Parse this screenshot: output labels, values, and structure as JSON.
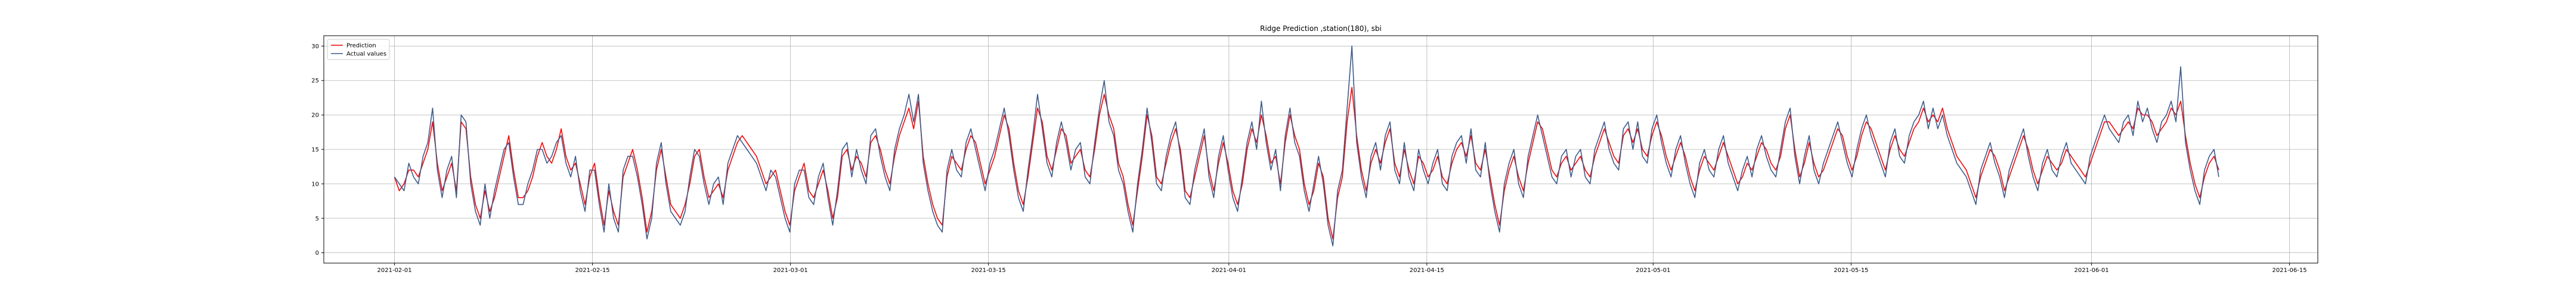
{
  "chart_data": {
    "type": "line",
    "title": "Ridge Prediction ,station(180), sbi",
    "xlabel": "",
    "ylabel": "",
    "x_start": "2021-02-01",
    "x_end": "2021-06-10",
    "xlim": [
      "2021-01-27",
      "2021-06-17"
    ],
    "ylim": [
      -1.5,
      31.5
    ],
    "x_tick_labels": [
      "2021-02-01",
      "2021-02-15",
      "2021-03-01",
      "2021-03-15",
      "2021-04-01",
      "2021-04-15",
      "2021-05-01",
      "2021-05-15",
      "2021-06-01",
      "2021-06-15"
    ],
    "y_ticks": [
      0,
      5,
      10,
      15,
      20,
      25,
      30
    ],
    "grid": true,
    "legend_position": "upper-left",
    "series": [
      {
        "name": "Prediction",
        "color": "#ff0000",
        "values": [
          11,
          9,
          10,
          12,
          12,
          11,
          13,
          15,
          19,
          13,
          9,
          11,
          13,
          9,
          19,
          18,
          11,
          7,
          5,
          9,
          6,
          8,
          11,
          14,
          17,
          12,
          8,
          8,
          9,
          11,
          14,
          16,
          14,
          13,
          15,
          18,
          14,
          12,
          13,
          10,
          7,
          11,
          13,
          8,
          4,
          9,
          6,
          4,
          11,
          13,
          15,
          12,
          8,
          3,
          6,
          12,
          15,
          11,
          7,
          6,
          5,
          7,
          10,
          14,
          15,
          11,
          8,
          9,
          10,
          8,
          12,
          14,
          16,
          17,
          16,
          15,
          14,
          12,
          10,
          11,
          12,
          9,
          6,
          4,
          9,
          11,
          13,
          9,
          8,
          10,
          12,
          9,
          5,
          8,
          14,
          15,
          12,
          14,
          13,
          11,
          16,
          17,
          15,
          12,
          10,
          14,
          17,
          19,
          21,
          18,
          22,
          14,
          10,
          7,
          5,
          4,
          11,
          14,
          13,
          12,
          15,
          17,
          16,
          13,
          10,
          12,
          14,
          17,
          20,
          18,
          13,
          9,
          7,
          11,
          16,
          21,
          19,
          14,
          12,
          15,
          18,
          17,
          13,
          14,
          15,
          12,
          11,
          15,
          20,
          23,
          20,
          18,
          13,
          11,
          7,
          4,
          9,
          14,
          20,
          17,
          11,
          10,
          13,
          16,
          18,
          15,
          9,
          8,
          11,
          14,
          17,
          12,
          9,
          13,
          16,
          13,
          9,
          7,
          10,
          15,
          18,
          16,
          20,
          17,
          13,
          14,
          10,
          16,
          20,
          17,
          15,
          10,
          7,
          9,
          13,
          11,
          5,
          2,
          8,
          11,
          19,
          24,
          17,
          12,
          9,
          13,
          15,
          13,
          16,
          18,
          13,
          11,
          15,
          12,
          10,
          14,
          13,
          11,
          12,
          14,
          11,
          10,
          13,
          15,
          16,
          14,
          17,
          13,
          12,
          15,
          11,
          7,
          4,
          9,
          12,
          14,
          11,
          9,
          13,
          16,
          19,
          18,
          15,
          12,
          11,
          13,
          14,
          12,
          13,
          14,
          12,
          11,
          14,
          16,
          18,
          16,
          14,
          13,
          17,
          18,
          16,
          18,
          15,
          14,
          17,
          19,
          17,
          14,
          12,
          14,
          16,
          14,
          11,
          9,
          12,
          14,
          13,
          12,
          14,
          16,
          14,
          12,
          10,
          11,
          13,
          12,
          14,
          16,
          15,
          13,
          12,
          14,
          18,
          20,
          15,
          11,
          13,
          16,
          13,
          11,
          12,
          14,
          16,
          18,
          17,
          14,
          12,
          14,
          17,
          19,
          18,
          16,
          14,
          12,
          15,
          17,
          15,
          14,
          16,
          18,
          19,
          21,
          19,
          20,
          19,
          21,
          18,
          16,
          14,
          13,
          12,
          10,
          8,
          11,
          13,
          15,
          14,
          12,
          9,
          11,
          13,
          15,
          17,
          15,
          12,
          10,
          12,
          14,
          13,
          12,
          13,
          15,
          14,
          13,
          12,
          11,
          13,
          15,
          17,
          19,
          19,
          18,
          17,
          18,
          19,
          18,
          21,
          20,
          20,
          19,
          17,
          18,
          19,
          21,
          20,
          22,
          17,
          13,
          10,
          8,
          11,
          13,
          14,
          12
        ]
      },
      {
        "name": "Actual values",
        "color": "#3b5b8c",
        "values": [
          11,
          10,
          9,
          13,
          11,
          10,
          14,
          16,
          21,
          12,
          8,
          12,
          14,
          8,
          20,
          19,
          10,
          6,
          4,
          10,
          5,
          9,
          12,
          15,
          16,
          11,
          7,
          7,
          10,
          12,
          15,
          15,
          13,
          14,
          16,
          17,
          13,
          11,
          14,
          9,
          6,
          12,
          12,
          7,
          3,
          10,
          5,
          3,
          12,
          14,
          14,
          11,
          7,
          2,
          5,
          13,
          16,
          10,
          6,
          5,
          4,
          6,
          11,
          15,
          14,
          10,
          7,
          10,
          11,
          7,
          13,
          15,
          17,
          16,
          15,
          14,
          13,
          11,
          9,
          12,
          11,
          8,
          5,
          3,
          10,
          12,
          12,
          8,
          7,
          11,
          13,
          8,
          4,
          9,
          15,
          16,
          11,
          15,
          12,
          10,
          17,
          18,
          14,
          11,
          9,
          15,
          18,
          20,
          23,
          19,
          23,
          13,
          9,
          6,
          4,
          3,
          12,
          15,
          12,
          11,
          16,
          18,
          15,
          12,
          9,
          13,
          15,
          18,
          21,
          17,
          12,
          8,
          6,
          12,
          17,
          23,
          18,
          13,
          11,
          16,
          19,
          16,
          12,
          15,
          16,
          11,
          10,
          16,
          21,
          25,
          19,
          17,
          12,
          10,
          6,
          3,
          10,
          15,
          21,
          16,
          10,
          9,
          14,
          17,
          19,
          14,
          8,
          7,
          12,
          15,
          18,
          11,
          8,
          14,
          17,
          12,
          8,
          6,
          11,
          16,
          19,
          15,
          22,
          16,
          12,
          15,
          9,
          17,
          21,
          16,
          14,
          9,
          6,
          10,
          14,
          10,
          4,
          1,
          9,
          12,
          21,
          30,
          16,
          11,
          8,
          14,
          16,
          12,
          17,
          19,
          12,
          10,
          16,
          11,
          9,
          15,
          12,
          10,
          13,
          15,
          10,
          9,
          14,
          16,
          17,
          13,
          18,
          12,
          11,
          16,
          10,
          6,
          3,
          10,
          13,
          15,
          10,
          8,
          14,
          17,
          20,
          17,
          14,
          11,
          10,
          14,
          15,
          11,
          14,
          15,
          11,
          10,
          15,
          17,
          19,
          15,
          13,
          12,
          18,
          19,
          15,
          19,
          14,
          13,
          18,
          20,
          16,
          13,
          11,
          15,
          17,
          13,
          10,
          8,
          13,
          15,
          12,
          11,
          15,
          17,
          13,
          11,
          9,
          12,
          14,
          11,
          15,
          17,
          14,
          12,
          11,
          15,
          19,
          21,
          14,
          10,
          14,
          17,
          12,
          10,
          13,
          15,
          17,
          19,
          16,
          13,
          11,
          15,
          18,
          20,
          17,
          15,
          13,
          11,
          16,
          18,
          14,
          13,
          17,
          19,
          20,
          22,
          18,
          21,
          18,
          20,
          17,
          15,
          13,
          12,
          11,
          9,
          7,
          12,
          14,
          16,
          13,
          11,
          8,
          12,
          14,
          16,
          18,
          14,
          11,
          9,
          13,
          15,
          12,
          11,
          14,
          16,
          13,
          12,
          11,
          10,
          14,
          16,
          18,
          20,
          18,
          17,
          16,
          19,
          20,
          17,
          22,
          19,
          21,
          18,
          16,
          19,
          20,
          22,
          19,
          27,
          16,
          12,
          9,
          7,
          12,
          14,
          15,
          11
        ]
      }
    ]
  }
}
